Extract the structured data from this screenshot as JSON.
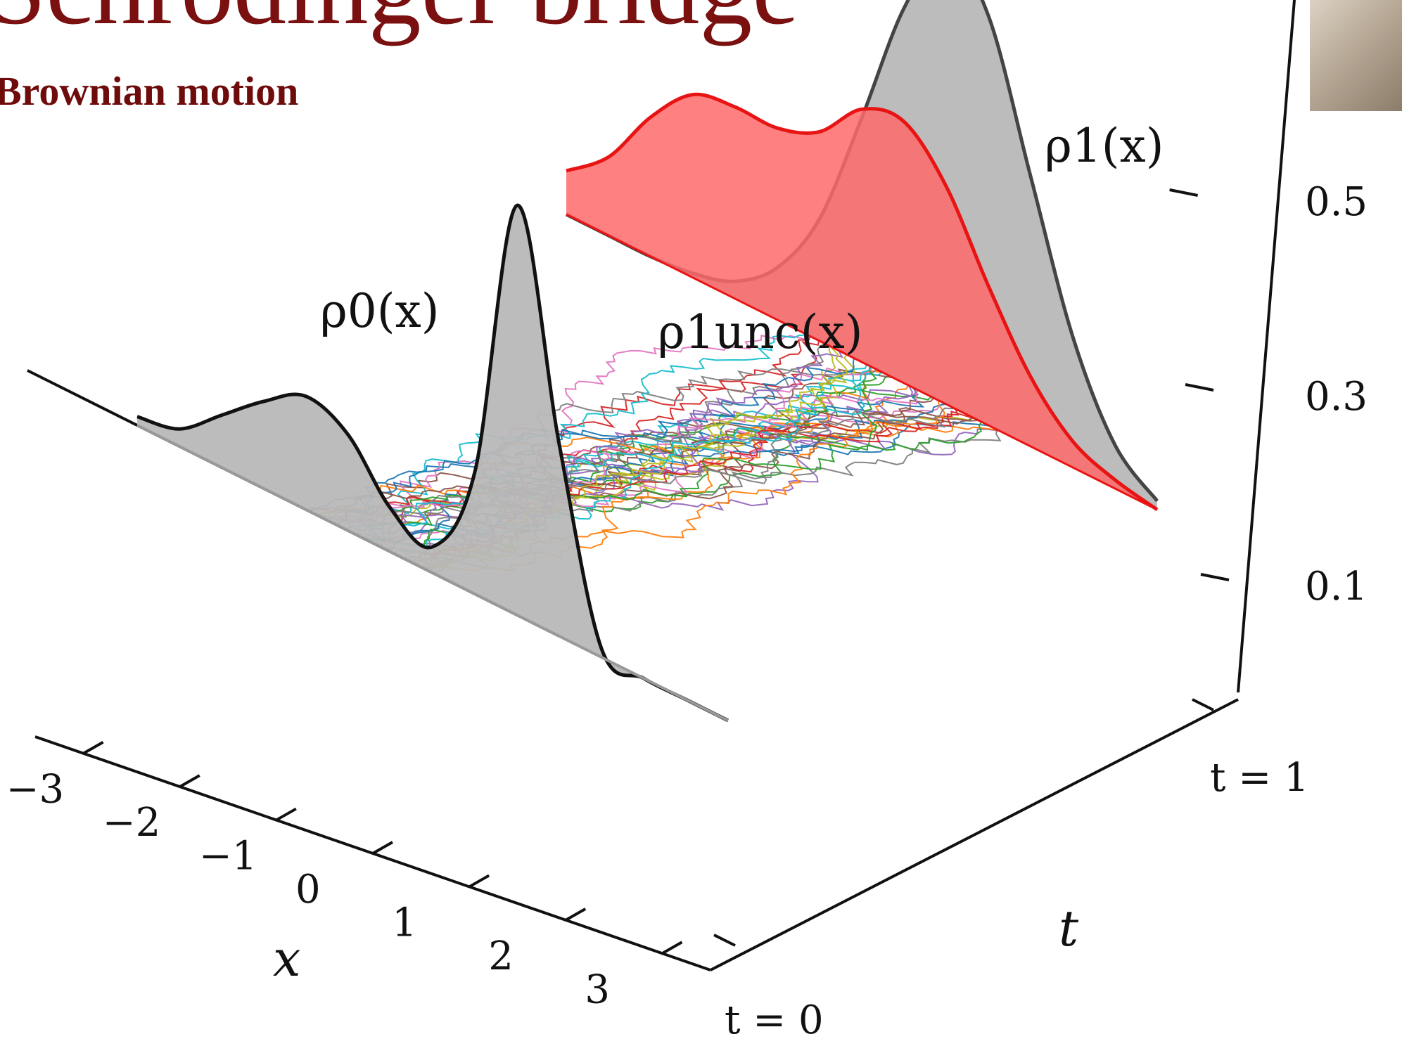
{
  "header": {
    "title": "Schrödinger bridge",
    "subtitle": "Brownian motion"
  },
  "portrait": {
    "icon": "portrait-photo-icon"
  },
  "colors": {
    "title": "#7a1010",
    "gray_fill": "#b8b8b8",
    "red_fill": "#ff6a6a",
    "red_line": "#e81414"
  },
  "chart_data": {
    "type": "line",
    "projection": "3d",
    "x_axis": {
      "label": "x",
      "ticks": [
        "−3",
        "−2",
        "−1",
        "0",
        "1",
        "2",
        "3"
      ],
      "range": [
        -3.5,
        3.5
      ]
    },
    "t_axis": {
      "label": "t",
      "ticks": [
        "t = 0",
        "t = 1"
      ],
      "range": [
        0,
        1
      ]
    },
    "z_axis": {
      "ticks": [
        "0.1",
        "0.3",
        "0.5"
      ],
      "range": [
        0,
        0.6
      ]
    },
    "annotations": {
      "rho0": "ρ0(x)",
      "rho1": "ρ1(x)",
      "rho1_unc": "ρ1unc(x)"
    },
    "series": [
      {
        "at_t": 0,
        "values": [
          0.01,
          0.02,
          0.06,
          0.1,
          0.13,
          0.11,
          0.05,
          0.03,
          0.14,
          0.47,
          0.22,
          0.01,
          0.0,
          0.0,
          0.0
        ]
      },
      {
        "at_t": 1,
        "values": [
          0.0,
          0.0,
          0.0,
          0.005,
          0.02,
          0.06,
          0.14,
          0.28,
          0.43,
          0.52,
          0.47,
          0.31,
          0.15,
          0.05,
          0.01
        ]
      },
      {
        "at_t": 1,
        "values": [
          0.05,
          0.09,
          0.16,
          0.21,
          0.22,
          0.22,
          0.24,
          0.29,
          0.3,
          0.25,
          0.16,
          0.08,
          0.03,
          0.01,
          0.0
        ]
      }
    ],
    "x_grid": [
      -3,
      -2.5,
      -2,
      -1.5,
      -1,
      -0.5,
      0,
      0.5,
      1,
      1.5,
      2,
      2.5,
      3,
      3.5,
      4
    ],
    "paths": {
      "count": 40,
      "start_x": [
        -1,
        0.5
      ],
      "end_x": [
        -0.2,
        2.2
      ]
    }
  }
}
